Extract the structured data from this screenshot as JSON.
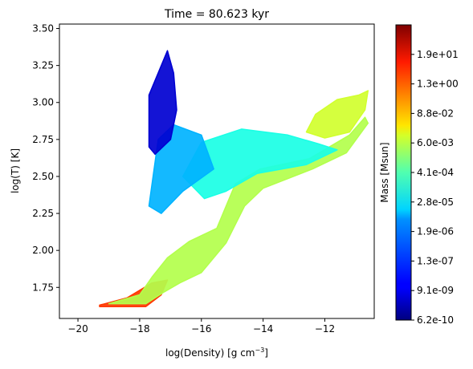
{
  "chart_data": {
    "type": "heatmap",
    "title": "Time = 80.623 kyr",
    "xlabel_base": "log(Density) [g cm",
    "xlabel_sup": "−3",
    "xlabel_end": "]",
    "ylabel": "log(T) [K]",
    "xlim": [
      -20.6,
      -10.4
    ],
    "ylim": [
      1.54,
      3.53
    ],
    "x_ticks": [
      {
        "value": -20,
        "label": "−20"
      },
      {
        "value": -18,
        "label": "−18"
      },
      {
        "value": -16,
        "label": "−16"
      },
      {
        "value": -14,
        "label": "−14"
      },
      {
        "value": -12,
        "label": "−12"
      }
    ],
    "y_ticks": [
      {
        "value": 1.75,
        "label": "1.75"
      },
      {
        "value": 2.0,
        "label": "2.00"
      },
      {
        "value": 2.25,
        "label": "2.25"
      },
      {
        "value": 2.5,
        "label": "2.50"
      },
      {
        "value": 2.75,
        "label": "2.75"
      },
      {
        "value": 3.0,
        "label": "3.00"
      },
      {
        "value": 3.25,
        "label": "3.25"
      },
      {
        "value": 3.5,
        "label": "3.50"
      }
    ],
    "colorbar": {
      "label": "Mass [Msun]",
      "colormap": "jet",
      "scale": "log",
      "ticks": [
        "6.2e-10",
        "9.1e-09",
        "1.3e-07",
        "1.9e-06",
        "2.8e-05",
        "4.1e-04",
        "6.0e-03",
        "8.8e-02",
        "1.3e+00",
        "1.9e+01"
      ]
    },
    "regions": [
      {
        "name": "cold-dense-tail",
        "points": [
          [
            -19.3,
            1.62
          ],
          [
            -17.8,
            1.62
          ],
          [
            -17.3,
            1.7
          ],
          [
            -17.1,
            1.8
          ],
          [
            -17.6,
            1.78
          ],
          [
            -18.4,
            1.68
          ],
          [
            -19.3,
            1.63
          ]
        ],
        "level": 0.82
      },
      {
        "name": "main-diagonal-band",
        "points": [
          [
            -19.0,
            1.64
          ],
          [
            -18.0,
            1.7
          ],
          [
            -17.6,
            1.82
          ],
          [
            -17.1,
            1.95
          ],
          [
            -16.4,
            2.06
          ],
          [
            -15.5,
            2.15
          ],
          [
            -14.9,
            2.45
          ],
          [
            -14.1,
            2.55
          ],
          [
            -12.5,
            2.62
          ],
          [
            -11.2,
            2.78
          ],
          [
            -10.7,
            2.9
          ],
          [
            -10.6,
            2.86
          ],
          [
            -11.3,
            2.66
          ],
          [
            -12.4,
            2.55
          ],
          [
            -14.0,
            2.42
          ],
          [
            -14.6,
            2.3
          ],
          [
            -15.2,
            2.05
          ],
          [
            -16.0,
            1.85
          ],
          [
            -16.7,
            1.78
          ],
          [
            -17.2,
            1.72
          ],
          [
            -17.8,
            1.64
          ]
        ],
        "level": 0.55
      },
      {
        "name": "upper-hot-extension",
        "points": [
          [
            -10.9,
            3.05
          ],
          [
            -11.6,
            3.02
          ],
          [
            -12.3,
            2.92
          ],
          [
            -12.6,
            2.8
          ],
          [
            -12.0,
            2.76
          ],
          [
            -11.2,
            2.8
          ],
          [
            -10.7,
            2.95
          ],
          [
            -10.6,
            3.08
          ]
        ],
        "level": 0.58
      },
      {
        "name": "warm-diffuse-branch",
        "points": [
          [
            -16.0,
            2.73
          ],
          [
            -14.7,
            2.82
          ],
          [
            -13.2,
            2.78
          ],
          [
            -12.2,
            2.72
          ],
          [
            -11.6,
            2.68
          ],
          [
            -12.6,
            2.58
          ],
          [
            -14.2,
            2.52
          ],
          [
            -15.2,
            2.4
          ],
          [
            -15.9,
            2.35
          ],
          [
            -16.6,
            2.5
          ]
        ],
        "level": 0.4
      },
      {
        "name": "low-density-plume",
        "points": [
          [
            -17.7,
            2.3
          ],
          [
            -17.4,
            2.75
          ],
          [
            -16.9,
            2.85
          ],
          [
            -16.0,
            2.78
          ],
          [
            -15.6,
            2.55
          ],
          [
            -16.6,
            2.4
          ],
          [
            -17.3,
            2.25
          ]
        ],
        "level": 0.3
      },
      {
        "name": "hot-column-spike",
        "points": [
          [
            -17.7,
            2.7
          ],
          [
            -17.7,
            3.05
          ],
          [
            -17.4,
            3.2
          ],
          [
            -17.1,
            3.35
          ],
          [
            -16.9,
            3.2
          ],
          [
            -16.8,
            2.95
          ],
          [
            -17.0,
            2.75
          ],
          [
            -17.5,
            2.65
          ]
        ],
        "level": 0.08
      }
    ]
  }
}
